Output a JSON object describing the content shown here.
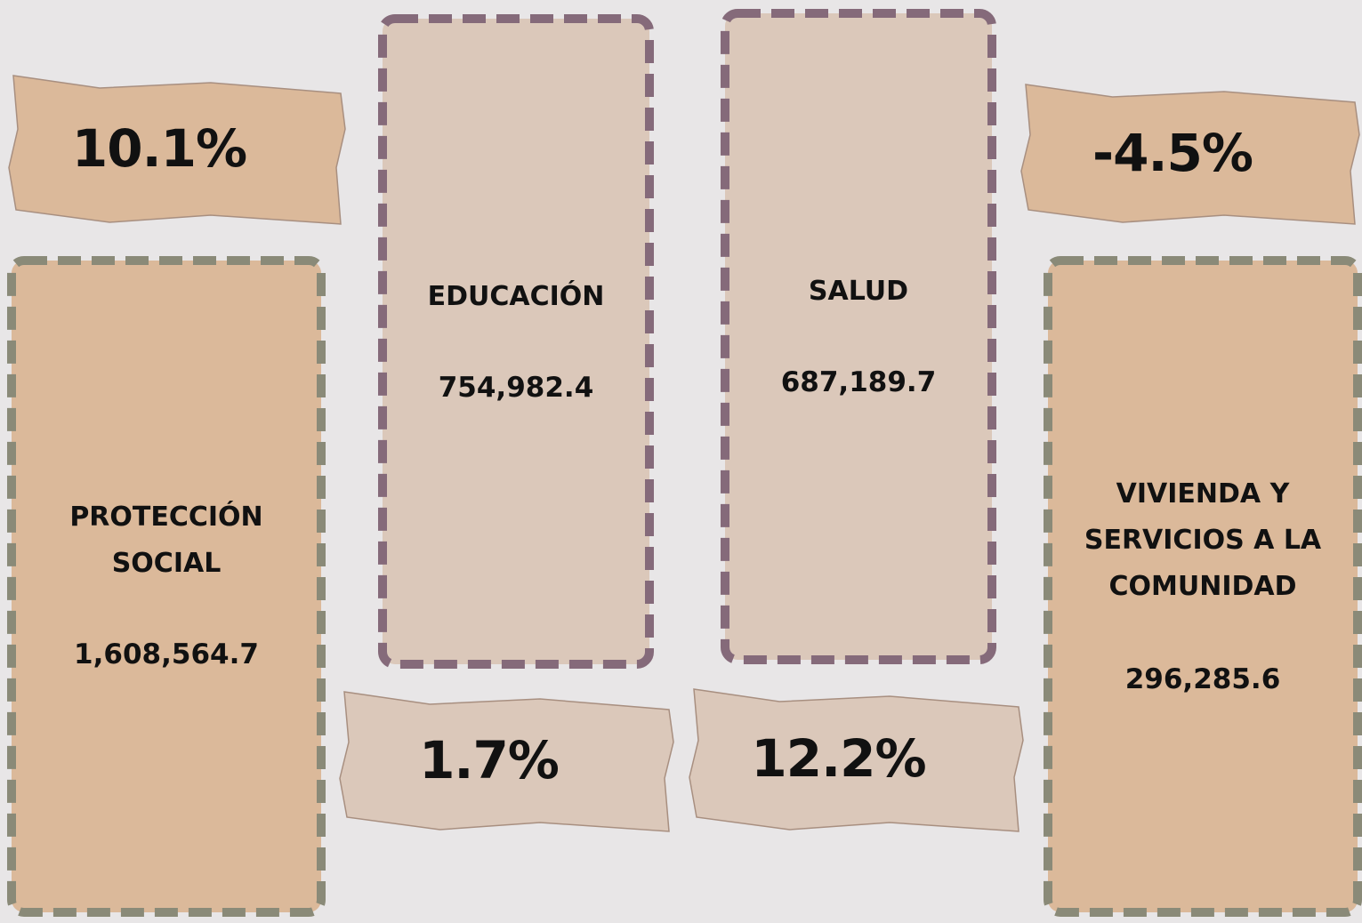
{
  "cards": [
    {
      "label": "PROTECCIÓN SOCIAL",
      "value": "1,608,564.7",
      "change": "10.1%"
    },
    {
      "label": "EDUCACIÓN",
      "value": "754,982.4",
      "change": "1.7%"
    },
    {
      "label": "SALUD",
      "value": "687,189.7",
      "change": "12.2%"
    },
    {
      "label": "VIVIENDA Y SERVICIOS A LA COMUNIDAD",
      "value": "296,285.6",
      "change": "-4.5%"
    }
  ]
}
